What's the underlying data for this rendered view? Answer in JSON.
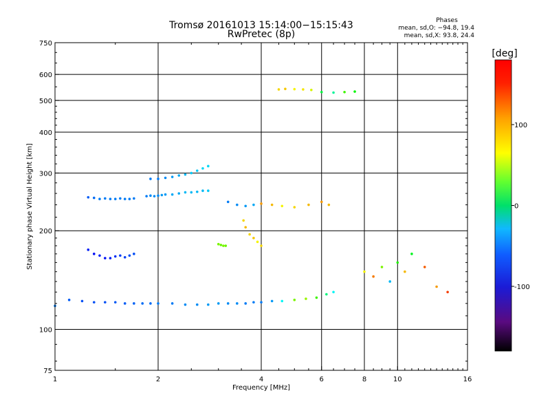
{
  "chart_data": {
    "type": "scatter",
    "title": "Tromsø 20161013 15:14:00−15:15:43",
    "subtitle": "RwPretec (8p)",
    "stats": {
      "heading": "Phases",
      "line_o": "mean, sd,O: −94.8, 19.4",
      "line_x": "mean, sd,X:  93.8, 24.4"
    },
    "xlabel": "Frequency [MHz]",
    "ylabel": "Stationary phase Virtual Height [km]",
    "x_scale": "log",
    "y_scale": "log",
    "xlim": [
      1,
      16
    ],
    "ylim": [
      75,
      750
    ],
    "x_ticks": [
      1,
      2,
      4,
      6,
      8,
      10,
      16
    ],
    "x_tick_labels": [
      "1",
      "2",
      "4",
      "6",
      "8",
      "10",
      "16"
    ],
    "y_ticks": [
      75,
      100,
      200,
      300,
      400,
      500,
      600,
      750
    ],
    "y_tick_labels": [
      "75",
      "100",
      "200",
      "300",
      "400",
      "500",
      "600",
      "750"
    ],
    "grid": true,
    "colorbar": {
      "label": "[deg]",
      "range": [
        -180,
        180
      ],
      "ticks": [
        100,
        0,
        -100
      ],
      "tick_labels": [
        "100",
        "0",
        "-100"
      ]
    },
    "series": [
      {
        "x": [
          1.0,
          1.1,
          1.2,
          1.3,
          1.4,
          1.5,
          1.6,
          1.7,
          1.8,
          1.9,
          2.0,
          2.2,
          2.4,
          2.6,
          2.8,
          3.0,
          3.2,
          3.4,
          3.6,
          3.8,
          4.0,
          4.3,
          4.6,
          5.0,
          5.4,
          5.8,
          6.2,
          6.5
        ],
        "y": [
          118,
          123,
          122,
          121,
          121,
          121,
          120,
          120,
          120,
          120,
          120,
          120,
          119,
          119,
          119,
          120,
          120,
          120,
          120,
          121,
          121,
          122,
          122,
          123,
          124,
          125,
          128,
          130
        ],
        "phase": [
          -100,
          -110,
          -115,
          -115,
          -115,
          -112,
          -110,
          -108,
          -105,
          -105,
          -100,
          -100,
          -95,
          -95,
          -90,
          -90,
          -95,
          -95,
          -100,
          -100,
          -100,
          -90,
          -60,
          60,
          70,
          40,
          -20,
          -60
        ]
      },
      {
        "x": [
          1.25,
          1.3,
          1.35,
          1.4,
          1.45,
          1.5,
          1.55,
          1.6,
          1.65,
          1.7
        ],
        "y": [
          175,
          170,
          168,
          165,
          165,
          167,
          168,
          166,
          168,
          170
        ],
        "phase": [
          -130,
          -135,
          -130,
          -135,
          -130,
          -125,
          -120,
          -120,
          -115,
          -115
        ]
      },
      {
        "x": [
          1.25,
          1.3,
          1.35,
          1.4,
          1.45,
          1.5,
          1.55,
          1.6,
          1.65,
          1.7
        ],
        "y": [
          253,
          252,
          250,
          251,
          250,
          250,
          251,
          250,
          250,
          251
        ],
        "phase": [
          -110,
          -105,
          -100,
          -100,
          -100,
          -100,
          -100,
          -100,
          -100,
          -100
        ]
      },
      {
        "x": [
          1.85,
          1.9,
          1.95,
          2.0,
          2.05,
          2.1,
          2.2,
          2.3,
          2.4,
          2.5,
          2.6,
          2.7,
          2.8
        ],
        "y": [
          255,
          256,
          255,
          256,
          257,
          258,
          258,
          260,
          262,
          262,
          263,
          265,
          265
        ],
        "phase": [
          -100,
          -95,
          -95,
          -95,
          -90,
          -90,
          -85,
          -85,
          -80,
          -80,
          -80,
          -80,
          -75
        ]
      },
      {
        "x": [
          1.9,
          2.0,
          2.1,
          2.2,
          2.3,
          2.4,
          2.5,
          2.6,
          2.7,
          2.8
        ],
        "y": [
          288,
          288,
          290,
          292,
          295,
          297,
          300,
          305,
          310,
          315
        ],
        "phase": [
          -100,
          -100,
          -95,
          -90,
          -85,
          -80,
          -75,
          -75,
          -70,
          -70
        ]
      },
      {
        "x": [
          3.55,
          3.6,
          3.7,
          3.8,
          3.9,
          4.0
        ],
        "y": [
          215,
          205,
          195,
          190,
          185,
          180
        ],
        "phase": [
          110,
          120,
          110,
          115,
          100,
          110
        ]
      },
      {
        "x": [
          3.0,
          3.05,
          3.1,
          3.15
        ],
        "y": [
          182,
          181,
          180,
          180
        ],
        "phase": [
          60,
          55,
          60,
          55
        ]
      },
      {
        "x": [
          4.5,
          4.7,
          5.0,
          5.3,
          5.6,
          6.0,
          6.5,
          7.0,
          7.5
        ],
        "y": [
          540,
          542,
          541,
          540,
          538,
          530,
          528,
          530,
          532
        ],
        "phase": [
          110,
          115,
          100,
          105,
          90,
          0,
          -30,
          40,
          20
        ]
      },
      {
        "x": [
          3.2,
          3.4,
          3.6,
          3.8,
          4.0,
          4.3,
          4.6,
          5.0,
          5.5,
          6.0,
          6.3
        ],
        "y": [
          245,
          240,
          238,
          240,
          242,
          240,
          238,
          236,
          240,
          245,
          240
        ],
        "phase": [
          -100,
          -95,
          -90,
          -85,
          130,
          120,
          100,
          110,
          120,
          130,
          120
        ]
      },
      {
        "x": [
          8.0,
          8.5,
          9.0,
          9.5,
          10.0,
          10.5,
          11.0,
          12.0,
          13.0,
          14.0
        ],
        "y": [
          150,
          145,
          155,
          140,
          160,
          150,
          170,
          155,
          135,
          130
        ],
        "phase": [
          100,
          140,
          60,
          -80,
          30,
          120,
          10,
          150,
          130,
          160
        ]
      }
    ]
  }
}
